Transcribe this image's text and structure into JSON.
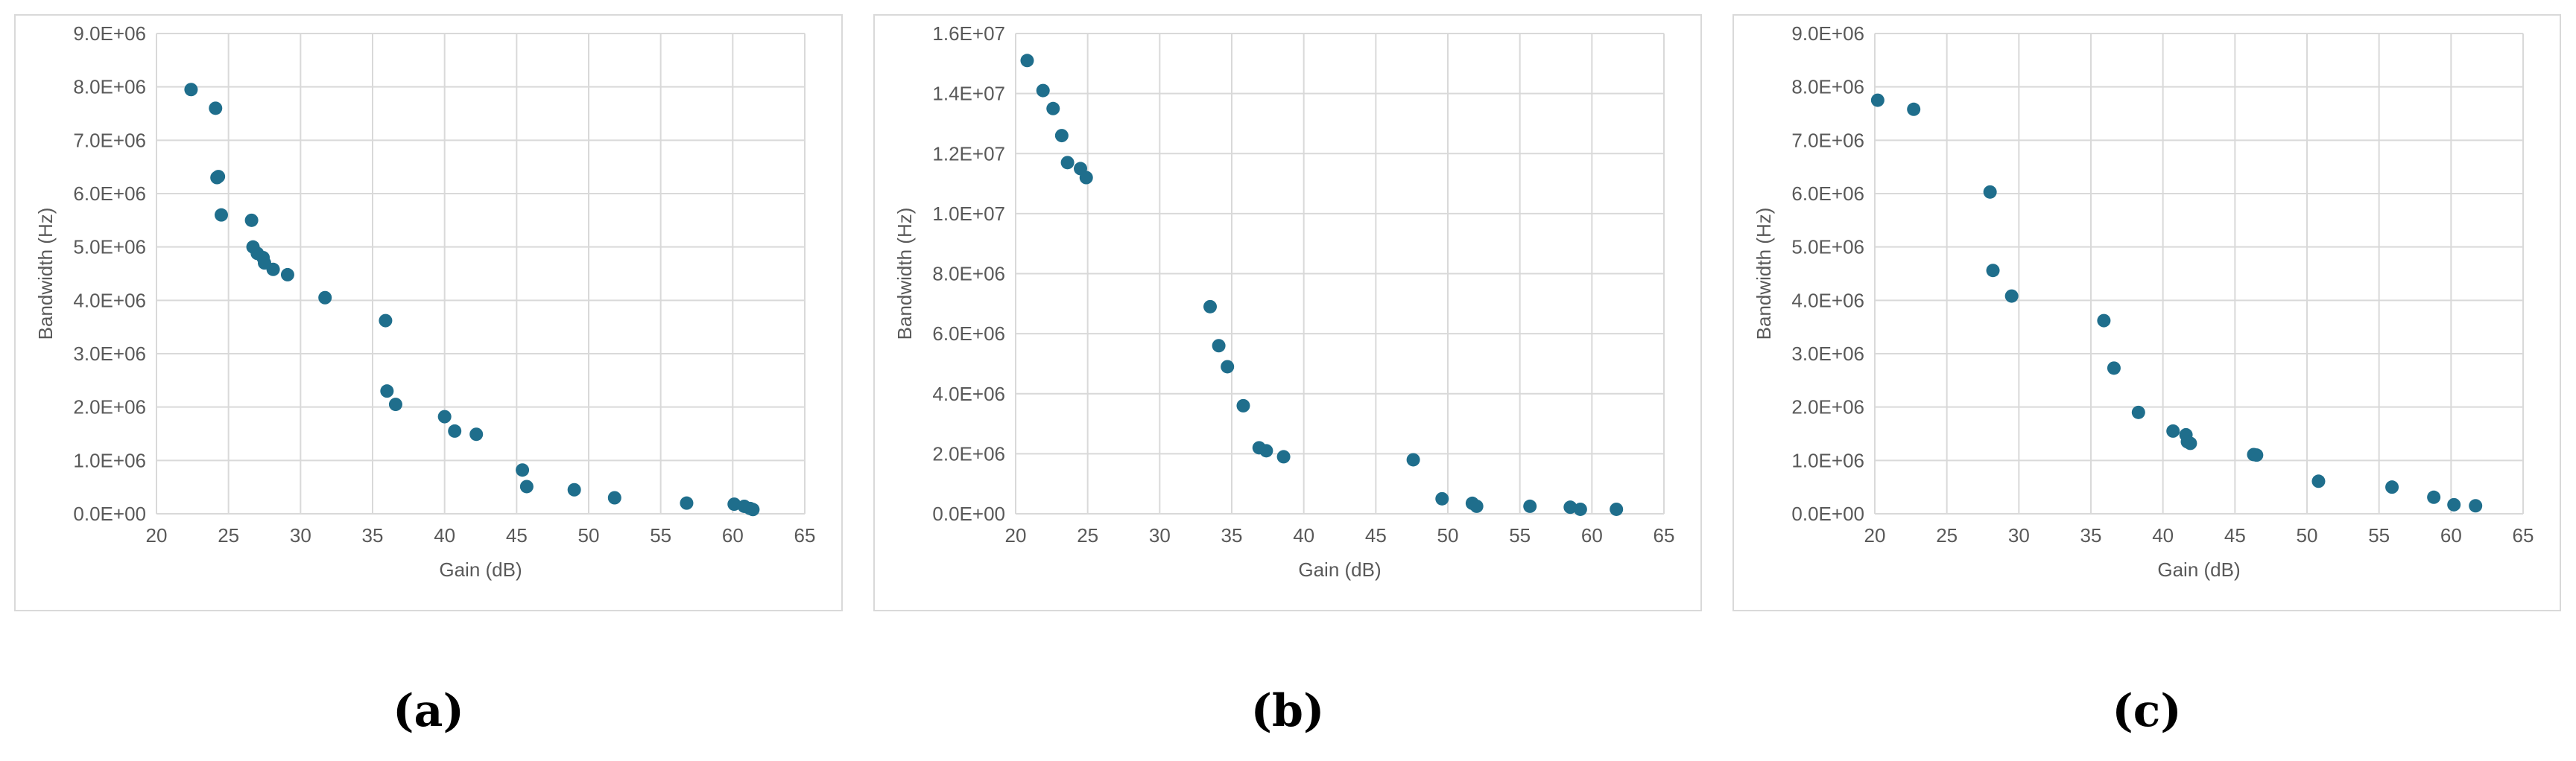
{
  "colors": {
    "marker": "#1f6e8c",
    "grid": "#d9d9d9",
    "text": "#595959"
  },
  "chart_data": [
    {
      "type": "scatter",
      "panel_label": "(a)",
      "xlabel": "Gain (dB)",
      "ylabel": "Bandwidth (Hz)",
      "xlim": [
        20,
        65
      ],
      "ylim": [
        0,
        9000000
      ],
      "xticks": [
        "20",
        "25",
        "30",
        "35",
        "40",
        "45",
        "50",
        "55",
        "60",
        "65"
      ],
      "yticks": [
        "0.0E+00",
        "1.0E+06",
        "2.0E+06",
        "3.0E+06",
        "4.0E+06",
        "5.0E+06",
        "6.0E+06",
        "7.0E+06",
        "8.0E+06",
        "9.0E+06"
      ],
      "grid": "vertical and horizontal",
      "points": [
        {
          "x": 22.4,
          "y": 7950000
        },
        {
          "x": 24.1,
          "y": 7600000
        },
        {
          "x": 24.2,
          "y": 6300000
        },
        {
          "x": 24.3,
          "y": 6320000
        },
        {
          "x": 24.5,
          "y": 5600000
        },
        {
          "x": 26.6,
          "y": 5500000
        },
        {
          "x": 26.7,
          "y": 5000000
        },
        {
          "x": 27.0,
          "y": 4880000
        },
        {
          "x": 27.4,
          "y": 4800000
        },
        {
          "x": 27.5,
          "y": 4700000
        },
        {
          "x": 28.1,
          "y": 4580000
        },
        {
          "x": 29.1,
          "y": 4480000
        },
        {
          "x": 31.7,
          "y": 4050000
        },
        {
          "x": 35.9,
          "y": 3620000
        },
        {
          "x": 36.0,
          "y": 2300000
        },
        {
          "x": 36.6,
          "y": 2050000
        },
        {
          "x": 40.0,
          "y": 1820000
        },
        {
          "x": 40.7,
          "y": 1550000
        },
        {
          "x": 42.2,
          "y": 1490000
        },
        {
          "x": 45.4,
          "y": 820000
        },
        {
          "x": 45.7,
          "y": 510000
        },
        {
          "x": 49.0,
          "y": 450000
        },
        {
          "x": 51.8,
          "y": 300000
        },
        {
          "x": 56.8,
          "y": 200000
        },
        {
          "x": 60.1,
          "y": 180000
        },
        {
          "x": 60.8,
          "y": 140000
        },
        {
          "x": 61.2,
          "y": 100000
        },
        {
          "x": 61.4,
          "y": 80000
        }
      ]
    },
    {
      "type": "scatter",
      "panel_label": "(b)",
      "xlabel": "Gain (dB)",
      "ylabel": "Bandwidth (Hz)",
      "xlim": [
        20,
        65
      ],
      "ylim": [
        0,
        16000000
      ],
      "xticks": [
        "20",
        "25",
        "30",
        "35",
        "40",
        "45",
        "50",
        "55",
        "60",
        "65"
      ],
      "yticks": [
        "0.0E+00",
        "2.0E+06",
        "4.0E+06",
        "6.0E+06",
        "8.0E+06",
        "1.0E+07",
        "1.2E+07",
        "1.4E+07",
        "1.6E+07"
      ],
      "grid": "vertical and horizontal",
      "points": [
        {
          "x": 20.8,
          "y": 15100000
        },
        {
          "x": 21.9,
          "y": 14100000
        },
        {
          "x": 22.6,
          "y": 13500000
        },
        {
          "x": 23.2,
          "y": 12600000
        },
        {
          "x": 23.6,
          "y": 11700000
        },
        {
          "x": 24.5,
          "y": 11500000
        },
        {
          "x": 24.9,
          "y": 11200000
        },
        {
          "x": 33.5,
          "y": 6900000
        },
        {
          "x": 34.1,
          "y": 5600000
        },
        {
          "x": 34.7,
          "y": 4900000
        },
        {
          "x": 35.8,
          "y": 3600000
        },
        {
          "x": 36.9,
          "y": 2200000
        },
        {
          "x": 37.4,
          "y": 2100000
        },
        {
          "x": 38.6,
          "y": 1900000
        },
        {
          "x": 47.6,
          "y": 1800000
        },
        {
          "x": 49.6,
          "y": 500000
        },
        {
          "x": 51.7,
          "y": 350000
        },
        {
          "x": 52.0,
          "y": 250000
        },
        {
          "x": 55.7,
          "y": 250000
        },
        {
          "x": 58.5,
          "y": 220000
        },
        {
          "x": 59.2,
          "y": 150000
        },
        {
          "x": 61.7,
          "y": 150000
        }
      ]
    },
    {
      "type": "scatter",
      "panel_label": "(c)",
      "xlabel": "Gain (dB)",
      "ylabel": "Bandwidth (Hz)",
      "xlim": [
        20,
        65
      ],
      "ylim": [
        0,
        9000000
      ],
      "xticks": [
        "20",
        "25",
        "30",
        "35",
        "40",
        "45",
        "50",
        "55",
        "60",
        "65"
      ],
      "yticks": [
        "0.0E+00",
        "1.0E+06",
        "2.0E+06",
        "3.0E+06",
        "4.0E+06",
        "5.0E+06",
        "6.0E+06",
        "7.0E+06",
        "8.0E+06",
        "9.0E+06"
      ],
      "grid": "vertical and horizontal",
      "points": [
        {
          "x": 20.2,
          "y": 7750000
        },
        {
          "x": 22.7,
          "y": 7580000
        },
        {
          "x": 28.0,
          "y": 6030000
        },
        {
          "x": 28.2,
          "y": 4560000
        },
        {
          "x": 29.5,
          "y": 4080000
        },
        {
          "x": 35.9,
          "y": 3620000
        },
        {
          "x": 36.6,
          "y": 2730000
        },
        {
          "x": 38.3,
          "y": 1900000
        },
        {
          "x": 40.7,
          "y": 1550000
        },
        {
          "x": 41.6,
          "y": 1480000
        },
        {
          "x": 41.7,
          "y": 1350000
        },
        {
          "x": 41.9,
          "y": 1320000
        },
        {
          "x": 46.3,
          "y": 1110000
        },
        {
          "x": 46.5,
          "y": 1100000
        },
        {
          "x": 50.8,
          "y": 610000
        },
        {
          "x": 55.9,
          "y": 500000
        },
        {
          "x": 58.8,
          "y": 310000
        },
        {
          "x": 60.2,
          "y": 170000
        },
        {
          "x": 61.7,
          "y": 150000
        }
      ]
    }
  ]
}
